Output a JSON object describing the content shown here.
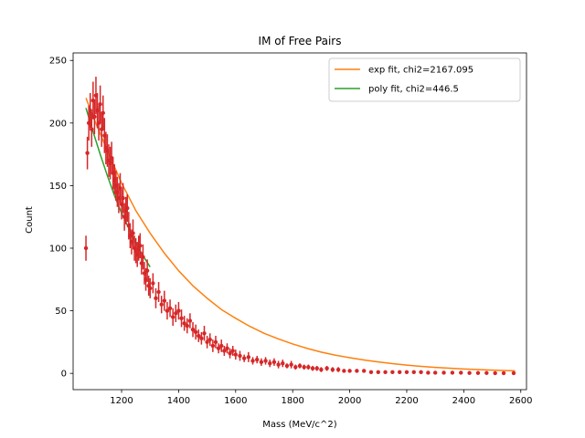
{
  "chart_data": {
    "type": "scatter",
    "title": "IM of Free Pairs",
    "xlabel": "Mass (MeV/c^2)",
    "ylabel": "Count",
    "xlim": [
      1030,
      2620
    ],
    "ylim": [
      -13,
      256
    ],
    "xticks": [
      1200,
      1400,
      1600,
      1800,
      2000,
      2200,
      2400,
      2600
    ],
    "yticks": [
      0,
      50,
      100,
      150,
      200,
      250
    ],
    "grid": false,
    "legend_position": "top-right",
    "colors": {
      "data": "#d62728",
      "exp_fit": "#ff7f0e",
      "poly_fit": "#2ca02c"
    },
    "series": [
      {
        "name": "exp fit, chi2=2167.095",
        "kind": "line",
        "x": [
          1075,
          1100,
          1150,
          1200,
          1250,
          1300,
          1350,
          1400,
          1450,
          1500,
          1550,
          1600,
          1650,
          1700,
          1750,
          1800,
          1850,
          1900,
          1950,
          2000,
          2050,
          2100,
          2150,
          2200,
          2250,
          2300,
          2350,
          2400,
          2450,
          2500,
          2550,
          2580
        ],
        "y": [
          220,
          205,
          178,
          152,
          130,
          112,
          96,
          82,
          70,
          60,
          51,
          44,
          37.5,
          32,
          27.5,
          23.5,
          20,
          17,
          14.5,
          12.5,
          10.7,
          9.1,
          7.8,
          6.6,
          5.6,
          4.8,
          4.1,
          3.5,
          3.0,
          2.6,
          2.2,
          2.0
        ]
      },
      {
        "name": "poly fit, chi2=446.5",
        "kind": "line",
        "x": [
          1075,
          1100,
          1125,
          1150,
          1175,
          1200,
          1225,
          1250,
          1275,
          1300
        ],
        "y": [
          212,
          193,
          175,
          158,
          142,
          128,
          116,
          104,
          94,
          85
        ]
      },
      {
        "name": "",
        "kind": "errorbar",
        "x": [
          1075,
          1080,
          1085,
          1090,
          1095,
          1100,
          1105,
          1110,
          1115,
          1120,
          1125,
          1130,
          1135,
          1140,
          1145,
          1150,
          1155,
          1160,
          1165,
          1170,
          1175,
          1180,
          1185,
          1190,
          1195,
          1200,
          1205,
          1210,
          1215,
          1220,
          1225,
          1230,
          1235,
          1240,
          1245,
          1250,
          1255,
          1260,
          1265,
          1270,
          1275,
          1280,
          1285,
          1290,
          1295,
          1300,
          1310,
          1320,
          1330,
          1340,
          1350,
          1360,
          1370,
          1380,
          1390,
          1400,
          1410,
          1420,
          1430,
          1440,
          1450,
          1460,
          1470,
          1480,
          1490,
          1500,
          1510,
          1520,
          1530,
          1540,
          1550,
          1560,
          1570,
          1580,
          1590,
          1600,
          1615,
          1630,
          1645,
          1660,
          1675,
          1690,
          1705,
          1720,
          1735,
          1750,
          1765,
          1780,
          1795,
          1810,
          1825,
          1840,
          1855,
          1870,
          1885,
          1900,
          1920,
          1940,
          1960,
          1980,
          2000,
          2025,
          2050,
          2075,
          2100,
          2125,
          2150,
          2175,
          2200,
          2225,
          2250,
          2275,
          2300,
          2330,
          2360,
          2390,
          2420,
          2450,
          2480,
          2510,
          2540,
          2575
        ],
        "y": [
          100,
          176,
          200,
          210,
          195,
          218,
          205,
          222,
          210,
          200,
          215,
          195,
          208,
          190,
          180,
          178,
          170,
          168,
          172,
          160,
          155,
          150,
          145,
          140,
          148,
          135,
          140,
          125,
          130,
          132,
          118,
          110,
          105,
          112,
          100,
          98,
          95,
          100,
          102,
          88,
          93,
          80,
          75,
          82,
          70,
          68,
          72,
          60,
          65,
          55,
          58,
          50,
          52,
          45,
          48,
          50,
          44,
          40,
          38,
          42,
          35,
          33,
          30,
          28,
          32,
          25,
          27,
          22,
          25,
          20,
          22,
          18,
          20,
          16,
          18,
          15,
          14,
          12,
          13,
          10,
          11,
          9,
          10,
          8,
          9,
          7,
          8,
          6,
          7,
          5,
          6,
          5,
          5,
          4,
          4,
          3,
          4,
          3,
          3,
          2,
          2,
          2,
          2,
          1,
          1,
          1,
          1,
          1,
          1,
          1,
          1,
          0.5,
          0.5,
          0.5,
          0.5,
          0.5,
          0.3,
          0.3,
          0.3,
          0.2,
          0.2,
          0.2
        ],
        "err": [
          10,
          13,
          14,
          14,
          14,
          15,
          14,
          15,
          14,
          14,
          15,
          14,
          14,
          14,
          13,
          13,
          13,
          13,
          13,
          13,
          12,
          12,
          12,
          12,
          12,
          12,
          12,
          11,
          11,
          11,
          11,
          10,
          10,
          11,
          10,
          10,
          10,
          10,
          10,
          9,
          10,
          9,
          9,
          9,
          8,
          8,
          8,
          8,
          8,
          7,
          8,
          7,
          7,
          7,
          7,
          7,
          7,
          6,
          6,
          6,
          6,
          6,
          5,
          5,
          6,
          5,
          5,
          5,
          5,
          4,
          5,
          4,
          4,
          4,
          4,
          4,
          4,
          3,
          4,
          3,
          3,
          3,
          3,
          3,
          3,
          3,
          3,
          2,
          3,
          2,
          2,
          2,
          2,
          2,
          2,
          2,
          2,
          2,
          2,
          1.5,
          1.5,
          1.5,
          1.5,
          1,
          1,
          1,
          1,
          1,
          1,
          1,
          1,
          0.7,
          0.7,
          0.7,
          0.7,
          0.7,
          0.5,
          0.5,
          0.5,
          0.4,
          0.4,
          0.4
        ]
      }
    ]
  }
}
